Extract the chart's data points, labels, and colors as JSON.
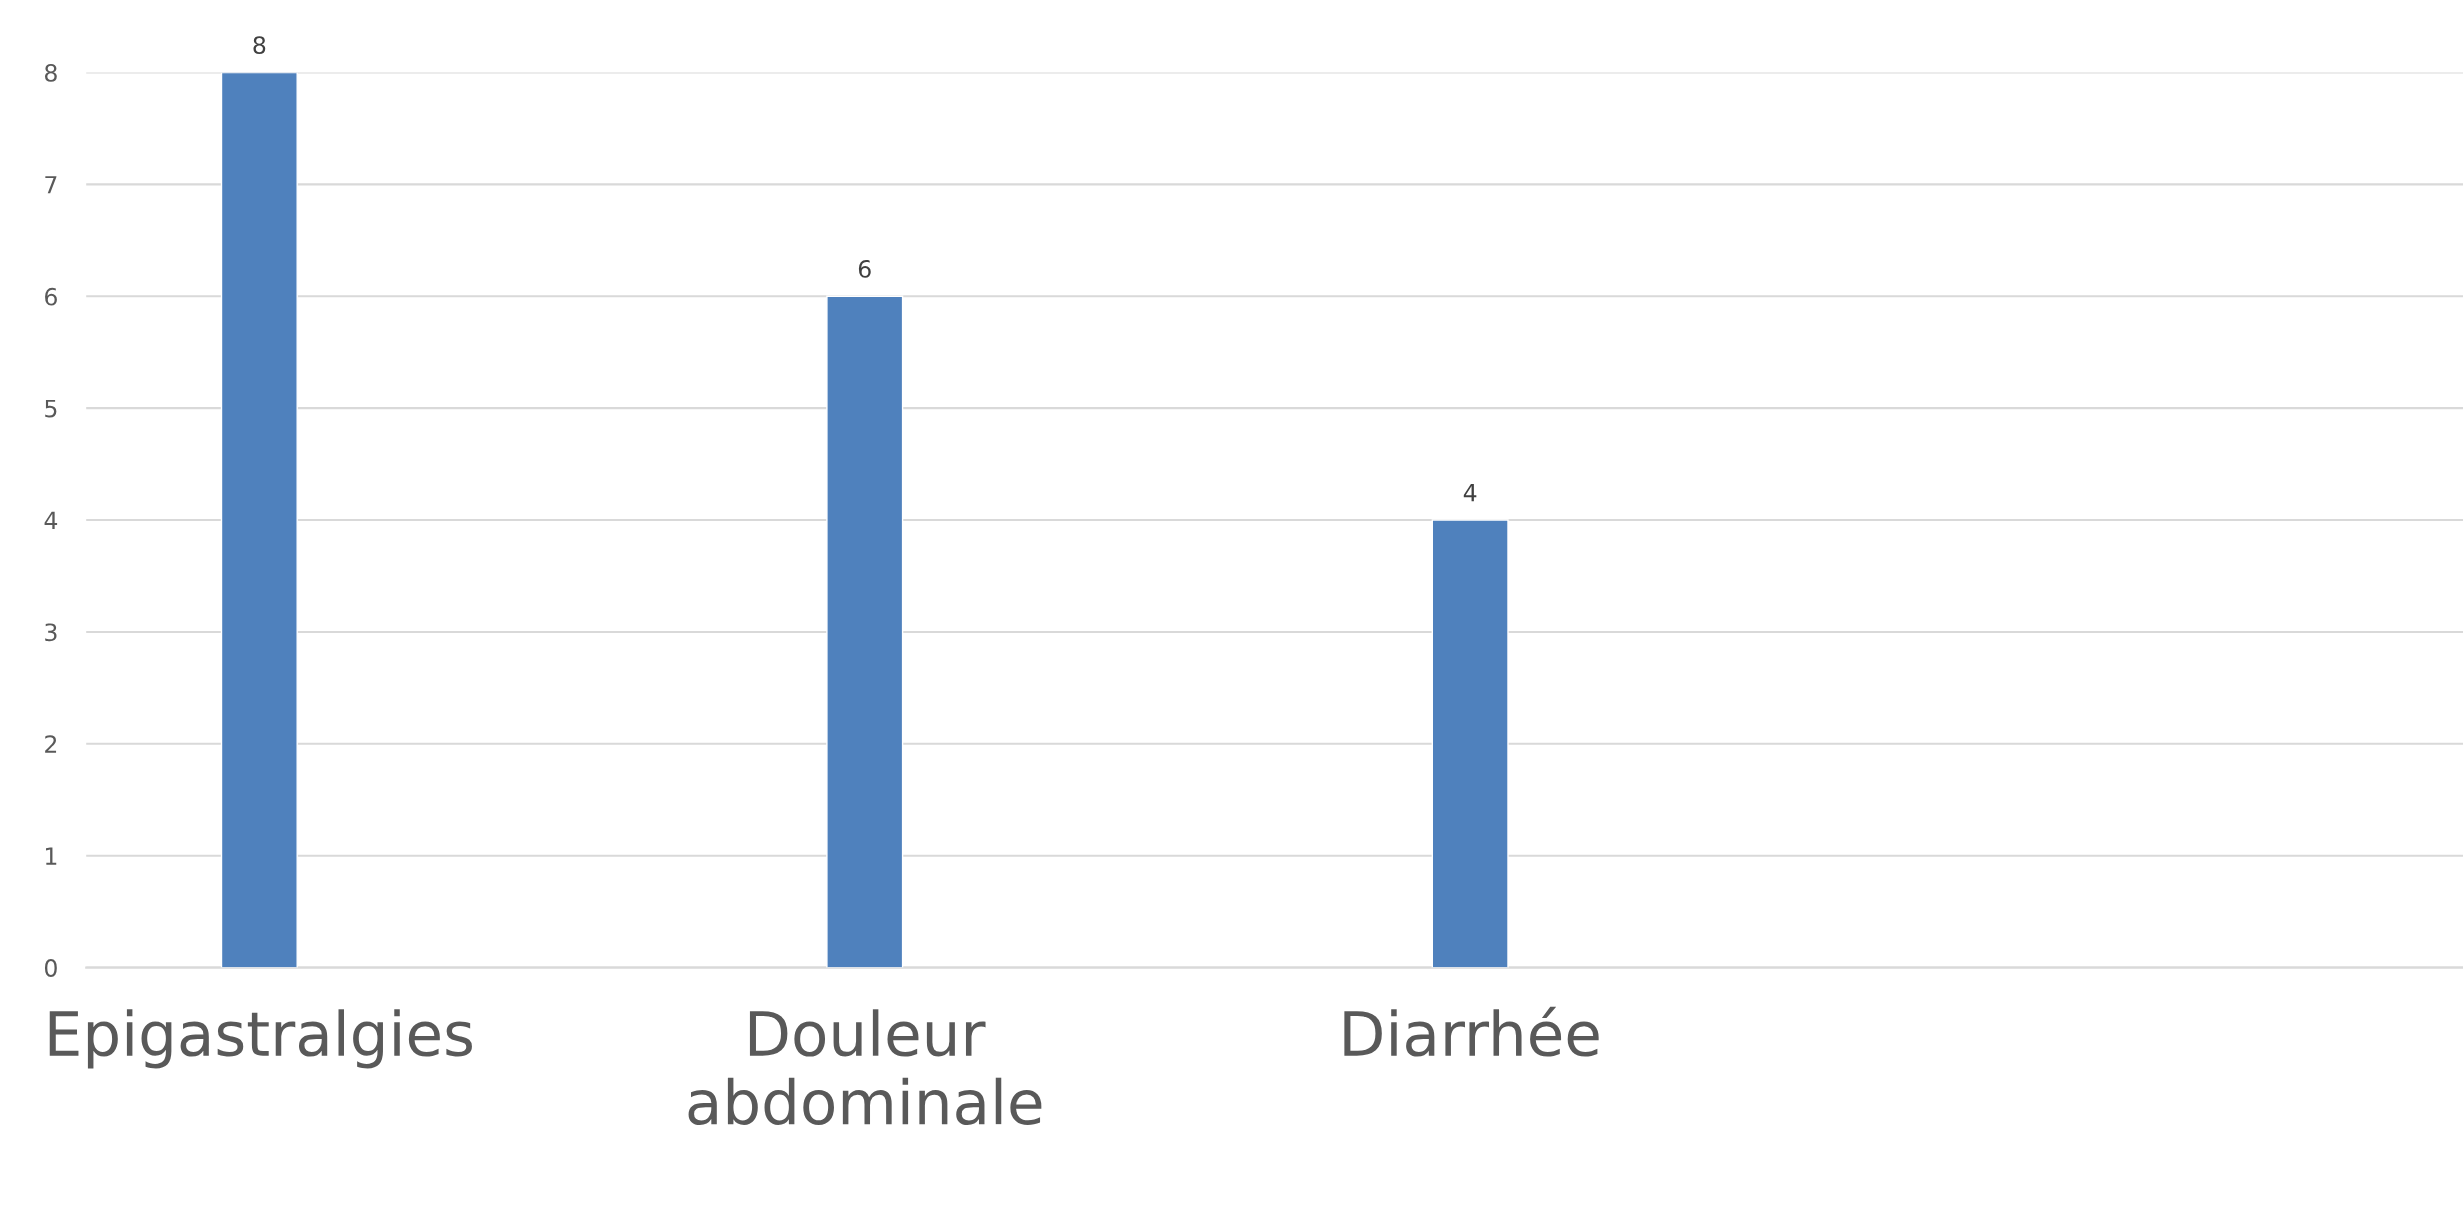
{
  "chart_data": {
    "type": "bar",
    "categories": [
      "Epigastralgies",
      "Douleur abdominale",
      "Diarrhée"
    ],
    "values": [
      8,
      6,
      4
    ],
    "color": "#4f81bd",
    "ylim": [
      0,
      8
    ],
    "yticks": [
      0,
      1,
      2,
      3,
      4,
      5,
      6,
      7,
      8
    ],
    "grid": "y",
    "data_labels": true,
    "legend": false
  }
}
